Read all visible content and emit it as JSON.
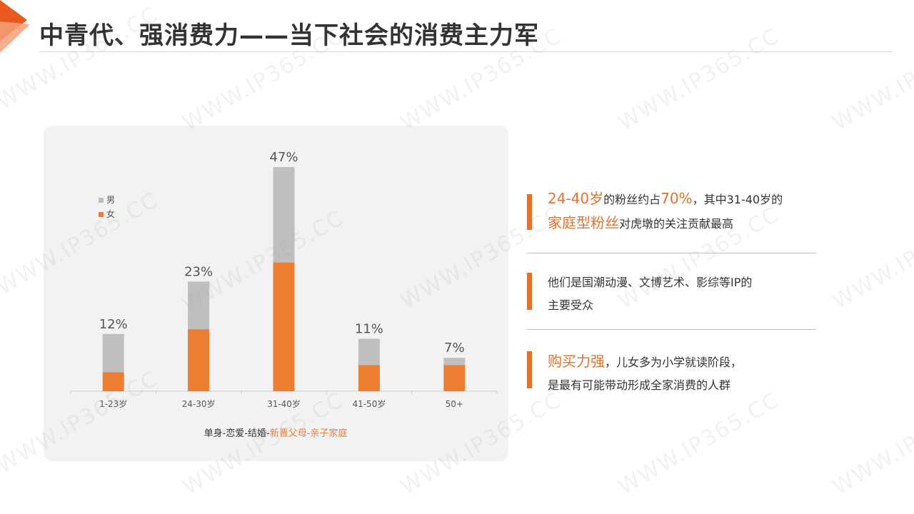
{
  "header": {
    "title": "中青代、强消费力——当下社会的消费主力军"
  },
  "chart_data": {
    "type": "bar",
    "stacked": true,
    "categories": [
      "1-23岁",
      "24-30岁",
      "31-40岁",
      "41-50岁",
      "50+"
    ],
    "totals_labels": [
      "12%",
      "23%",
      "47%",
      "11%",
      "7%"
    ],
    "totals": [
      12,
      23,
      47,
      11,
      7
    ],
    "series": [
      {
        "name": "女",
        "color": "#ed7d31",
        "values": [
          4,
          13,
          27,
          5.5,
          5.5
        ]
      },
      {
        "name": "男",
        "color": "#bfbfbf",
        "values": [
          8,
          10,
          20,
          5.5,
          1.5
        ]
      }
    ],
    "legend": [
      "男",
      "女"
    ],
    "legend_position": "top-left",
    "ylim": [
      0,
      47
    ],
    "grid": false,
    "caption": {
      "dark": "单身-恋爱-结婚-",
      "highlight": "新晋父母-亲子家庭"
    }
  },
  "info": {
    "block1": {
      "highlight_a": "24-40岁",
      "text_a": "的粉丝约占",
      "highlight_b": "70%",
      "text_b": "，其中31-40岁的",
      "highlight_c": "家庭型粉丝",
      "text_c": "对虎墩的关注贡献最高"
    },
    "block2": {
      "line1": "他们是国潮动漫、文博艺术、影综等IP的",
      "line2": "主要受众"
    },
    "block3": {
      "highlight": "购买力强",
      "text_a": "，儿女多为小学就读阶段，",
      "line2": "是最有可能带动形成全家消费的人群"
    }
  },
  "colors": {
    "accent": "#e8702a",
    "bar_female": "#ed7d31",
    "bar_male": "#bfbfbf",
    "panel_bg": "#f2f2f2"
  },
  "watermark": "WWW.IP365.CC"
}
